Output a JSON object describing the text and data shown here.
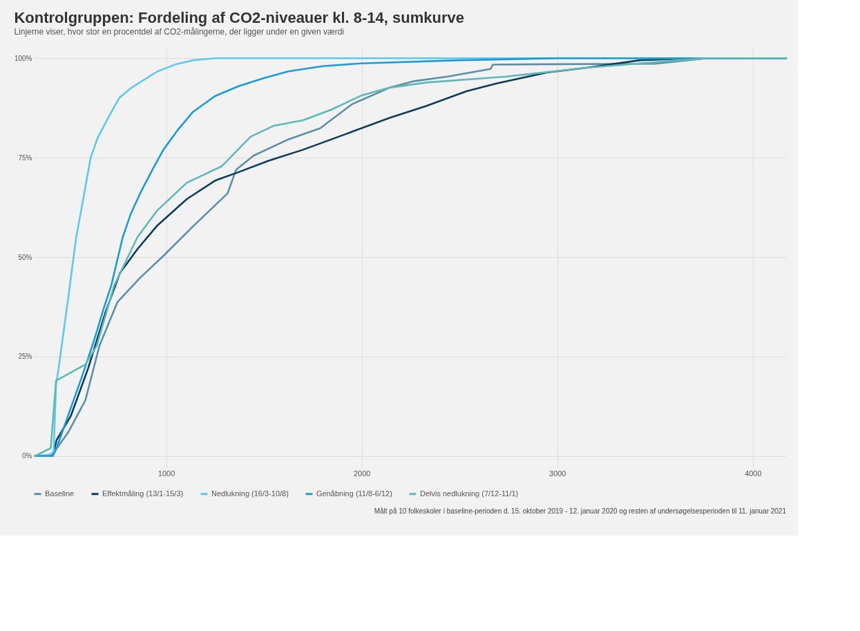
{
  "chart_data": {
    "type": "line",
    "title": "Kontrolgruppen: Fordeling af CO2-niveauer kl. 8-14, sumkurve",
    "subtitle": "Linjerne viser, hvor stor en procentdel af CO2-målingerne, der ligger under en given værdi",
    "annotations": [
      "Målt på 10 folkeskoler i baseline-perioden d. 15. oktober 2019 - 12. januar 2020 og resten af undersøgelsesperioden til 11. januar 2021"
    ],
    "xlim": [
      320,
      4170
    ],
    "xticks": [
      1000,
      2000,
      3000,
      4000
    ],
    "ylim": [
      -3,
      103
    ],
    "yticks": [
      {
        "value": 0,
        "label": "0%"
      },
      {
        "value": 25,
        "label": "25%"
      },
      {
        "value": 50,
        "label": "50%"
      },
      {
        "value": 75,
        "label": "75%"
      },
      {
        "value": 100,
        "label": "100%"
      }
    ],
    "grid": true,
    "legend": "bottom",
    "line_style": "solid",
    "marker": "none",
    "series": [
      {
        "name": "Baseline",
        "color": "#5b8fa8",
        "x": [
          330,
          420,
          437,
          500,
          587,
          659,
          751,
          867,
          986,
          1137,
          1314,
          1358,
          1447,
          1625,
          1788,
          1952,
          2143,
          2263,
          2440,
          2659,
          2670,
          3000,
          3500,
          3765,
          4170
        ],
        "values": [
          0,
          0,
          1.7,
          6,
          14,
          27.7,
          38.7,
          44.8,
          50.3,
          57.7,
          66,
          72,
          75.5,
          79.6,
          82.4,
          88.5,
          92.6,
          94.2,
          95.4,
          97.3,
          98.4,
          98.5,
          98.6,
          100,
          100
        ]
      },
      {
        "name": "Effektmåling (13/1-15/3)",
        "color": "#0b3c5d",
        "x": [
          330,
          420,
          440,
          512,
          601,
          689,
          764,
          853,
          956,
          1106,
          1253,
          1372,
          1522,
          1700,
          1922,
          2143,
          2331,
          2536,
          2686,
          2945,
          3150,
          3423,
          3700,
          4170
        ],
        "values": [
          0,
          0,
          4,
          10,
          22,
          36,
          46,
          52,
          58,
          64.6,
          69.3,
          71.4,
          74.2,
          77,
          81,
          85,
          88,
          91.7,
          93.6,
          96.4,
          97.6,
          99.5,
          100,
          100
        ]
      },
      {
        "name": "Nedlukning (16/3-10/8)",
        "color": "#5bc8f5",
        "x": [
          330,
          400,
          425,
          437,
          450,
          500,
          540,
          570,
          614,
          650,
          703,
          760,
          823,
          900,
          956,
          1050,
          1137,
          1250,
          4170
        ],
        "values": [
          0,
          0.3,
          1,
          18,
          22,
          40,
          55,
          63,
          75,
          80,
          85,
          90,
          92.6,
          95,
          96.7,
          98.5,
          99.5,
          100,
          100
        ]
      },
      {
        "name": "Genåbning (11/8-6/12)",
        "color": "#1a9cd8",
        "x": [
          330,
          420,
          440,
          512,
          570,
          631,
          680,
          720,
          778,
          820,
          867,
          930,
          986,
          1060,
          1137,
          1250,
          1372,
          1500,
          1625,
          1800,
          1997,
          2500,
          3000,
          4170
        ],
        "values": [
          0,
          0,
          2,
          12,
          20,
          29,
          37,
          43,
          55,
          61,
          66,
          72,
          77,
          82,
          86.5,
          90.5,
          93,
          95,
          96.7,
          98,
          98.7,
          99.5,
          100,
          100
        ]
      },
      {
        "name": "Delvis nedlukning (7/12-11/1)",
        "color": "#5fb8b8",
        "x": [
          330,
          410,
          437,
          587,
          645,
          734,
          853,
          956,
          1106,
          1283,
          1433,
          1549,
          1700,
          1846,
          1997,
          2143,
          2331,
          2741,
          3150,
          3423,
          3765,
          4170
        ],
        "values": [
          0,
          2,
          18.9,
          23,
          27.7,
          42.8,
          55,
          61.8,
          68.7,
          72.8,
          80.3,
          83,
          84.4,
          87.1,
          90.6,
          92.6,
          93.9,
          95.4,
          97.6,
          98.7,
          100,
          100
        ]
      }
    ]
  }
}
